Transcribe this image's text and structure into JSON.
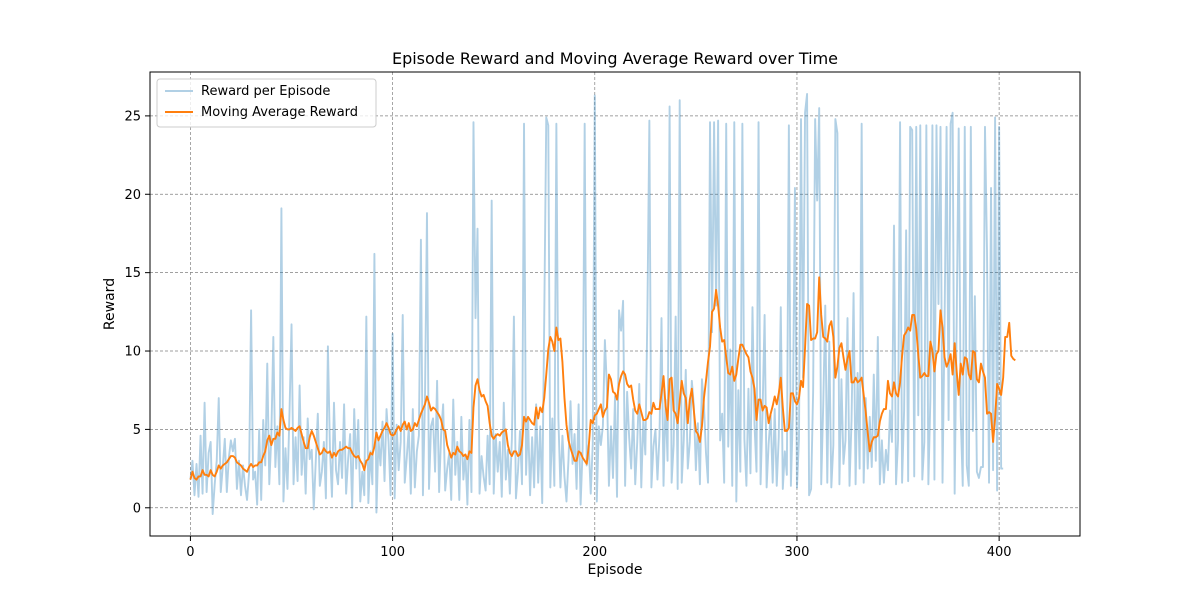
{
  "chart_data": {
    "type": "line",
    "title": "Episode Reward and Moving Average Reward over Time",
    "xlabel": "Episode",
    "ylabel": "Reward",
    "xlim": [
      -20,
      440
    ],
    "ylim": [
      -1.8,
      27.8
    ],
    "xticks": [
      0,
      100,
      200,
      300,
      400
    ],
    "yticks": [
      0,
      5,
      10,
      15,
      20,
      25
    ],
    "grid": true,
    "legend_position": "top-left",
    "series": [
      {
        "name": "Reward per Episode",
        "color": "#1f77b4",
        "opacity": 0.35,
        "x_start": 0,
        "values": [
          1.8,
          3.0,
          0.8,
          2.8,
          0.7,
          4.6,
          0.9,
          6.7,
          1.0,
          3.5,
          4.2,
          -0.4,
          1.5,
          3.0,
          7.0,
          1.0,
          2.6,
          4.4,
          1.0,
          3.2,
          4.3,
          3.6,
          4.4,
          1.2,
          3.0,
          0.8,
          2.7,
          1.4,
          0.5,
          2.2,
          12.6,
          1.8,
          2.3,
          0.2,
          5.0,
          0.5,
          5.6,
          2.7,
          9.2,
          1.5,
          4.5,
          10.9,
          2.6,
          5.2,
          1.5,
          19.1,
          0.4,
          3.8,
          1.2,
          6.1,
          11.7,
          1.5,
          4.5,
          1.7,
          7.8,
          2.1,
          4.5,
          0.9,
          5.7,
          3.1,
          3.7,
          -0.1,
          3.0,
          6.0,
          1.4,
          2.3,
          4.2,
          0.6,
          10.3,
          3.8,
          0.7,
          6.7,
          2.4,
          1.5,
          4.2,
          1.9,
          6.6,
          0.9,
          3.1,
          4.7,
          0.0,
          6.3,
          2.5,
          5.6,
          0.4,
          2.3,
          0.8,
          12.2,
          0.3,
          3.6,
          1.5,
          16.2,
          -0.3,
          4.4,
          2.7,
          5.5,
          1.7,
          6.3,
          4.2,
          0.8,
          11.1,
          0.6,
          5.3,
          2.4,
          4.2,
          12.3,
          1.6,
          3.2,
          5.1,
          0.9,
          6.3,
          1.3,
          3.6,
          4.6,
          17.1,
          0.8,
          6.9,
          18.8,
          1.2,
          5.2,
          5.7,
          2.3,
          8.1,
          1.0,
          4.7,
          6.6,
          1.1,
          2.5,
          3.5,
          0.5,
          6.9,
          2.1,
          4.2,
          0.5,
          5.8,
          1.8,
          3.4,
          0.2,
          5.6,
          1.0,
          24.6,
          12.1,
          17.8,
          0.9,
          3.3,
          2.0,
          1.1,
          4.6,
          1.5,
          19.6,
          0.9,
          4.7,
          2.3,
          4.2,
          0.7,
          6.7,
          1.8,
          3.7,
          0.9,
          4.4,
          12.2,
          0.6,
          2.3,
          4.9,
          1.5,
          24.5,
          2.1,
          5.7,
          0.8,
          4.5,
          1.3,
          6.6,
          1.6,
          5.2,
          0.3,
          12.1,
          24.9,
          24.4,
          1.3,
          5.7,
          1.4,
          24.5,
          5.7,
          1.3,
          4.6,
          2.0,
          0.4,
          3.1,
          6.8,
          2.8,
          4.7,
          1.2,
          6.6,
          0.2,
          3.8,
          24.5,
          2.7,
          4.0,
          0.9,
          4.1,
          26.3,
          0.4,
          5.2,
          4.0,
          5.2,
          10.7,
          7.7,
          1.4,
          5.2,
          1.9,
          7.1,
          0.7,
          12.6,
          11.3,
          13.2,
          1.4,
          7.4,
          4.5,
          2.5,
          6.3,
          1.5,
          4.2,
          7.9,
          1.3,
          5.6,
          3.4,
          12.2,
          24.7,
          1.3,
          3.9,
          5.0,
          1.8,
          4.6,
          12.1,
          1.4,
          6.9,
          3.0,
          25.6,
          1.6,
          4.0,
          12.2,
          1.2,
          26.0,
          1.6,
          4.3,
          8.8,
          2.5,
          4.2,
          8.1,
          6.5,
          2.4,
          5.4,
          1.5,
          8.2,
          6.5,
          3.5,
          1.6,
          24.6,
          11.2,
          24.6,
          12.9,
          24.7,
          4.3,
          6.0,
          1.6,
          24.5,
          3.9,
          10.1,
          1.4,
          24.6,
          0.4,
          7.5,
          2.3,
          24.5,
          4.4,
          1.4,
          7.6,
          2.2,
          12.8,
          5.3,
          2.3,
          24.6,
          1.5,
          6.2,
          12.3,
          1.3,
          4.1,
          5.9,
          1.6,
          6.3,
          1.4,
          4.5,
          12.8,
          1.2,
          3.6,
          2.1,
          24.4,
          1.4,
          6.1,
          20.4,
          1.3,
          4.4,
          24.8,
          8.3,
          25.2,
          26.4,
          0.8,
          1.2,
          7.4,
          24.8,
          19.6,
          25.5,
          1.5,
          6.6,
          12.9,
          1.6,
          10.6,
          1.3,
          4.0,
          24.8,
          23.9,
          1.5,
          8.2,
          2.8,
          4.3,
          12.1,
          1.4,
          5.6,
          13.7,
          1.5,
          8.6,
          2.5,
          24.5,
          1.6,
          7.0,
          2.5,
          5.8,
          2.6,
          8.5,
          3.0,
          10.9,
          1.5,
          4.3,
          1.6,
          3.7,
          2.4,
          6.2,
          4.2,
          18.0,
          1.5,
          4.3,
          24.6,
          1.6,
          6.2,
          17.7,
          1.7,
          24.3,
          24.1,
          2.0,
          24.3,
          5.9,
          24.4,
          1.8,
          4.2,
          24.4,
          1.5,
          7.0,
          24.4,
          1.8,
          24.4,
          13.0,
          24.3,
          1.6,
          11.6,
          24.3,
          5.6,
          24.5,
          25.2,
          0.9,
          11.9,
          24.2,
          5.9,
          1.4,
          24.3,
          2.7,
          1.4,
          24.3,
          4.9,
          13.5,
          2.3,
          1.9,
          2.6,
          2.6,
          24.3,
          16.4,
          1.6,
          20.4,
          2.4,
          24.9,
          1.1,
          24.3,
          2.5,
          2.5
        ]
      },
      {
        "name": "Moving Average Reward",
        "color": "#ff7f0e",
        "opacity": 1,
        "x_start": 0,
        "values": [
          1.8,
          2.3,
          1.9,
          1.8,
          2.0,
          2.0,
          2.4,
          2.1,
          2.1,
          2.0,
          2.4,
          2.1,
          2.0,
          2.3,
          2.7,
          2.5,
          2.7,
          2.8,
          2.9,
          3.1,
          3.3,
          3.3,
          3.2,
          2.9,
          2.8,
          2.7,
          2.5,
          2.4,
          2.3,
          2.6,
          2.8,
          2.6,
          2.7,
          2.7,
          2.9,
          2.9,
          3.3,
          3.6,
          4.3,
          4.6,
          4.0,
          4.4,
          4.4,
          4.8,
          4.6,
          6.3,
          5.6,
          5.1,
          5.0,
          5.0,
          5.1,
          5.0,
          4.9,
          5.1,
          5.2,
          4.7,
          4.2,
          3.8,
          3.8,
          4.5,
          4.9,
          4.6,
          4.2,
          3.8,
          3.4,
          3.5,
          3.8,
          3.6,
          3.5,
          3.6,
          3.2,
          3.5,
          3.3,
          3.6,
          3.7,
          3.7,
          3.8,
          3.9,
          3.8,
          3.8,
          3.5,
          3.3,
          3.2,
          3.3,
          3.0,
          2.8,
          2.4,
          3.0,
          3.1,
          3.5,
          3.4,
          3.9,
          4.8,
          4.3,
          4.6,
          4.9,
          5.1,
          5.4,
          5.1,
          4.7,
          4.6,
          4.7,
          5.0,
          5.2,
          4.9,
          5.3,
          5.5,
          5.0,
          5.4,
          4.9,
          5.0,
          5.4,
          5.2,
          5.6,
          6.0,
          6.3,
          6.6,
          7.1,
          6.7,
          6.2,
          6.4,
          6.3,
          6.1,
          5.9,
          5.6,
          5.0,
          4.9,
          4.0,
          3.6,
          3.2,
          3.5,
          3.4,
          3.9,
          3.6,
          3.5,
          3.3,
          3.4,
          3.1,
          3.6,
          3.5,
          6.4,
          7.8,
          8.2,
          7.5,
          7.1,
          7.2,
          6.8,
          6.5,
          5.4,
          4.6,
          4.4,
          4.6,
          4.7,
          4.6,
          4.8,
          4.9,
          5.0,
          4.0,
          3.5,
          3.3,
          3.6,
          3.6,
          3.3,
          3.4,
          4.0,
          5.8,
          5.5,
          5.8,
          5.6,
          5.4,
          5.3,
          6.4,
          5.7,
          6.4,
          6.1,
          7.0,
          8.5,
          10.1,
          10.9,
          10.6,
          10.0,
          11.5,
          10.7,
          10.8,
          9.3,
          7.0,
          5.3,
          4.3,
          3.8,
          3.4,
          3.0,
          3.0,
          3.6,
          3.5,
          3.2,
          3.0,
          2.8,
          3.9,
          5.6,
          5.4,
          5.9,
          6.0,
          6.3,
          6.6,
          5.8,
          6.2,
          6.4,
          8.5,
          8.2,
          7.4,
          7.3,
          6.9,
          7.9,
          8.4,
          8.7,
          8.5,
          7.9,
          7.7,
          7.8,
          6.9,
          6.2,
          6.0,
          6.6,
          6.1,
          5.6,
          5.6,
          5.7,
          6.1,
          6.0,
          6.7,
          6.3,
          6.3,
          6.3,
          7.3,
          8.4,
          6.5,
          5.6,
          8.2,
          8.3,
          6.2,
          6.0,
          5.4,
          6.8,
          8.1,
          7.3,
          7.0,
          5.4,
          6.9,
          7.6,
          6.2,
          4.9,
          4.7,
          4.2,
          5.2,
          7.0,
          8.1,
          9.3,
          10.3,
          12.5,
          12.7,
          13.9,
          12.9,
          11.5,
          10.6,
          10.7,
          9.6,
          8.6,
          8.5,
          9.0,
          8.1,
          8.5,
          9.5,
          10.4,
          10.4,
          10.1,
          9.8,
          9.6,
          8.7,
          8.3,
          7.6,
          5.6,
          6.9,
          6.9,
          6.2,
          6.5,
          6.4,
          5.4,
          6.0,
          6.5,
          7.1,
          6.6,
          7.3,
          8.3,
          6.4,
          4.9,
          4.9,
          5.1,
          7.3,
          7.3,
          6.8,
          6.6,
          7.0,
          8.1,
          7.7,
          10.2,
          13.0,
          12.9,
          10.7,
          10.8,
          10.8,
          11.2,
          14.7,
          12.3,
          10.9,
          10.8,
          10.6,
          11.6,
          11.9,
          10.9,
          8.3,
          9.0,
          10.2,
          10.5,
          9.6,
          8.8,
          9.5,
          10.0,
          8.0,
          8.0,
          8.3,
          8.0,
          8.1,
          8.3,
          7.2,
          6.1,
          4.8,
          3.6,
          4.2,
          4.5,
          4.5,
          4.6,
          5.5,
          6.0,
          6.3,
          6.3,
          8.1,
          7.3,
          7.1,
          8.0,
          7.3,
          7.1,
          8.0,
          9.7,
          11.0,
          11.2,
          11.5,
          11.3,
          12.3,
          12.3,
          11.4,
          9.8,
          8.3,
          8.4,
          8.6,
          8.4,
          8.4,
          10.6,
          10.0,
          8.7,
          9.8,
          10.0,
          12.6,
          11.5,
          9.6,
          9.0,
          9.3,
          9.8,
          8.5,
          10.5,
          8.7,
          7.2,
          9.2,
          8.5,
          9.6,
          9.5,
          8.5,
          8.2,
          10.0,
          9.9,
          8.2,
          8.0,
          9.2,
          8.7,
          8.3,
          6.0,
          6.1,
          6.0,
          4.2,
          5.7,
          7.9,
          7.6,
          7.2,
          8.3,
          10.9,
          10.9,
          11.8,
          9.7,
          9.5,
          9.4
        ]
      }
    ]
  }
}
